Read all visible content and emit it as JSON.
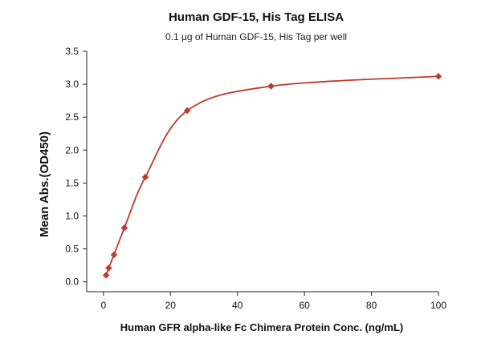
{
  "chart_data": {
    "type": "scatter",
    "title": "Human GDF-15, His Tag ELISA",
    "subtitle": "0.1 μg of Human GDF-15, His Tag per well",
    "xlabel": "Human GFR alpha-like Fc Chimera Protein Conc. (ng/mL)",
    "ylabel": "Mean Abs.(OD450)",
    "xlim": [
      -5,
      100
    ],
    "ylim": [
      -0.15,
      3.5
    ],
    "x_ticks": [
      0,
      20,
      40,
      60,
      80,
      100
    ],
    "x_tick_labels": [
      "0",
      "20",
      "40",
      "60",
      "80",
      "100"
    ],
    "y_ticks": [
      0.0,
      0.5,
      1.0,
      1.5,
      2.0,
      2.5,
      3.0,
      3.5
    ],
    "y_tick_labels": [
      "0.0",
      "0.5",
      "1.0",
      "1.5",
      "2.0",
      "2.5",
      "3.0",
      "3.5"
    ],
    "grid": false,
    "legend": "none",
    "series": [
      {
        "marker": "diamond",
        "fit": "four-parameter logistic curve",
        "x": [
          0.78,
          1.56,
          3.13,
          6.25,
          12.5,
          25,
          50,
          100
        ],
        "y": [
          0.1,
          0.21,
          0.41,
          0.82,
          1.59,
          2.6,
          2.97,
          3.12
        ]
      }
    ],
    "colors": {
      "series": "#c0392b",
      "axis": "#222222"
    }
  }
}
